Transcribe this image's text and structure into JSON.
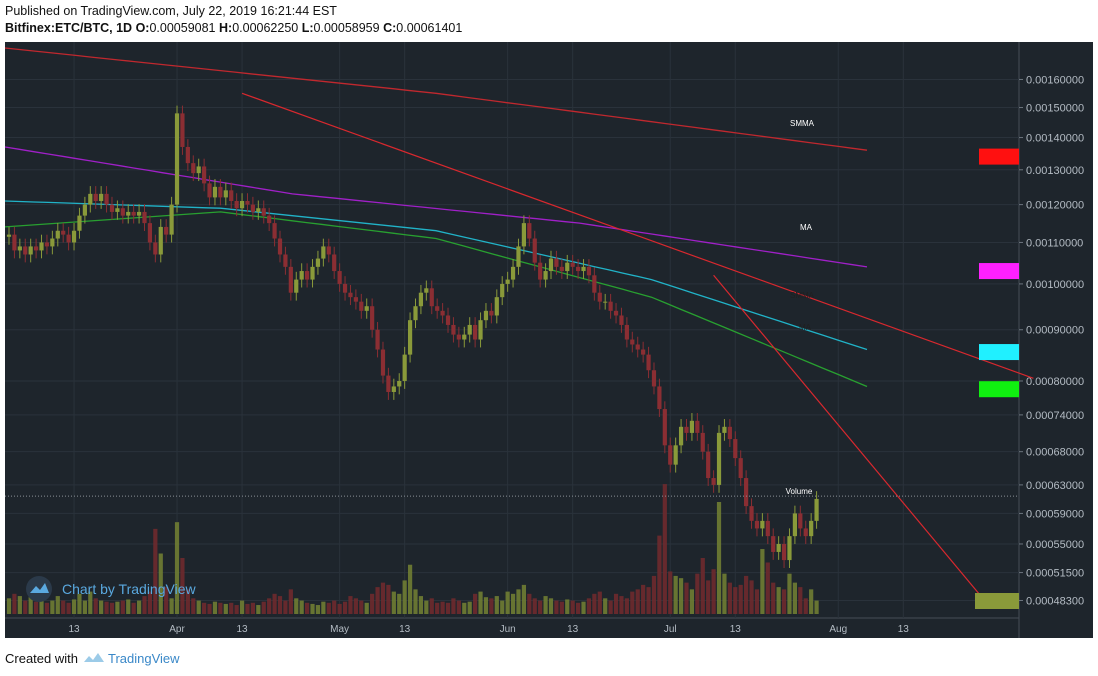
{
  "header": {
    "published": "Published on TradingView.com, July 22, 2019 16:21:44 EST",
    "symbol": "Bitfinex:ETC/BTC, 1D",
    "o_label": "O:",
    "o_value": "0.00059081",
    "h_label": "H:",
    "h_value": "0.00062250",
    "l_label": "L:",
    "l_value": "0.00058959",
    "c_label": "C:",
    "c_value": "0.00061401"
  },
  "footer": {
    "created_with": "Created with",
    "brand": "TradingView"
  },
  "watermark": "Chart by TradingView",
  "colors": {
    "background": "#1e252c",
    "grid": "#2a323b",
    "up": "#8a9a3a",
    "down": "#8b2e33",
    "up_volume": "#6f7d33",
    "down_volume": "#6e2a2e",
    "smma_red": "#c0282e",
    "ma_magenta": "#a020c8",
    "ema_cyan": "#21b3c8",
    "ma_green": "#28a030",
    "trendline": "#d8282e",
    "axis_text": "#b4bcc4"
  },
  "chart_data": {
    "type": "candlestick",
    "symbol": "Bitfinex:ETC/BTC",
    "interval": "1D",
    "y_axis": {
      "scale": "log",
      "ticks": [
        "0.00160000",
        "0.00150000",
        "0.00140000",
        "0.00130000",
        "0.00120000",
        "0.00110000",
        "0.00100000",
        "0.00090000",
        "0.00080000",
        "0.00074000",
        "0.00068000",
        "0.00063000",
        "0.00059000",
        "0.00055000",
        "0.00051500",
        "0.00048300"
      ]
    },
    "x_axis": {
      "ticks": [
        {
          "label": "13",
          "date": "2019-03-13"
        },
        {
          "label": "Apr",
          "date": "2019-04-01"
        },
        {
          "label": "13",
          "date": "2019-04-13"
        },
        {
          "label": "May",
          "date": "2019-05-01"
        },
        {
          "label": "13",
          "date": "2019-05-13"
        },
        {
          "label": "Jun",
          "date": "2019-06-01"
        },
        {
          "label": "13",
          "date": "2019-06-13"
        },
        {
          "label": "Jul",
          "date": "2019-07-01"
        },
        {
          "label": "13",
          "date": "2019-07-13"
        },
        {
          "label": "Aug",
          "date": "2019-08-01"
        },
        {
          "label": "13",
          "date": "2019-08-13"
        }
      ]
    },
    "start_date": "2019-03-01",
    "close": [
      0.00112,
      0.00108,
      0.00109,
      0.00107,
      0.00109,
      0.00108,
      0.0011,
      0.00109,
      0.00111,
      0.00113,
      0.00112,
      0.0011,
      0.00113,
      0.00117,
      0.0012,
      0.00123,
      0.00121,
      0.00123,
      0.0012,
      0.00118,
      0.00119,
      0.00117,
      0.00118,
      0.00117,
      0.00118,
      0.00115,
      0.0011,
      0.00107,
      0.00114,
      0.00112,
      0.0012,
      0.00148,
      0.00137,
      0.00132,
      0.00129,
      0.00131,
      0.00126,
      0.00122,
      0.00125,
      0.00122,
      0.00124,
      0.00121,
      0.00119,
      0.00121,
      0.0012,
      0.00118,
      0.00119,
      0.00117,
      0.00115,
      0.00111,
      0.00107,
      0.00104,
      0.00098,
      0.00101,
      0.00103,
      0.00101,
      0.00104,
      0.00106,
      0.00109,
      0.00107,
      0.00103,
      0.001,
      0.00098,
      0.00097,
      0.00096,
      0.00094,
      0.00095,
      0.0009,
      0.00086,
      0.00081,
      0.00078,
      0.00079,
      0.0008,
      0.00085,
      0.00092,
      0.00095,
      0.00098,
      0.00099,
      0.00095,
      0.00094,
      0.00093,
      0.00091,
      0.00089,
      0.00088,
      0.00089,
      0.00091,
      0.00088,
      0.00092,
      0.00094,
      0.00093,
      0.00097,
      0.001,
      0.00101,
      0.00104,
      0.00109,
      0.00115,
      0.00111,
      0.00105,
      0.00101,
      0.00103,
      0.00106,
      0.00104,
      0.00103,
      0.00105,
      0.00104,
      0.00103,
      0.00104,
      0.00102,
      0.00098,
      0.00096,
      0.00096,
      0.00094,
      0.00093,
      0.00091,
      0.00088,
      0.00087,
      0.00086,
      0.00085,
      0.00082,
      0.00079,
      0.00075,
      0.00069,
      0.00066,
      0.00069,
      0.00072,
      0.00071,
      0.00073,
      0.00071,
      0.00068,
      0.00064,
      0.00063,
      0.00071,
      0.00072,
      0.0007,
      0.00067,
      0.00064,
      0.0006,
      0.00058,
      0.00057,
      0.00058,
      0.00056,
      0.00054,
      0.00055,
      0.00053,
      0.00056,
      0.00059,
      0.00057,
      0.00056,
      0.00058,
      0.00061
    ],
    "volume": [
      14,
      18,
      16,
      12,
      15,
      11,
      14,
      10,
      12,
      16,
      12,
      10,
      13,
      18,
      12,
      20,
      14,
      12,
      11,
      10,
      11,
      12,
      13,
      10,
      12,
      16,
      20,
      76,
      54,
      24,
      14,
      82,
      50,
      22,
      14,
      12,
      10,
      9,
      11,
      10,
      9,
      10,
      8,
      12,
      9,
      10,
      8,
      11,
      14,
      18,
      16,
      12,
      22,
      14,
      12,
      10,
      9,
      8,
      11,
      10,
      12,
      9,
      11,
      16,
      14,
      12,
      10,
      18,
      24,
      28,
      26,
      20,
      18,
      30,
      44,
      22,
      16,
      12,
      14,
      10,
      11,
      10,
      14,
      12,
      10,
      11,
      18,
      20,
      15,
      14,
      16,
      12,
      20,
      18,
      22,
      26,
      18,
      14,
      12,
      16,
      14,
      12,
      11,
      13,
      12,
      10,
      11,
      14,
      18,
      20,
      14,
      12,
      18,
      16,
      14,
      20,
      22,
      26,
      24,
      34,
      70,
      116,
      38,
      34,
      32,
      28,
      22,
      36,
      50,
      30,
      40,
      100,
      36,
      28,
      24,
      26,
      34,
      30,
      22,
      58,
      46,
      28,
      24,
      22,
      36,
      28,
      24,
      14,
      22,
      12
    ],
    "indicator_labels": [
      {
        "text": "SMMA",
        "color": "#ffffff"
      },
      {
        "text": "MA",
        "color": "#ffffff"
      },
      {
        "text": "SMMA",
        "color": "#202020"
      },
      {
        "text": "MA",
        "color": "#202020"
      },
      {
        "text": "Volume",
        "color": "#ffffff"
      }
    ],
    "series_lines": [
      {
        "color": "#c0282e",
        "values": [
          0.00172,
          0.00155,
          0.00136
        ]
      },
      {
        "color": "#a020c8",
        "values": [
          0.00137,
          0.00123,
          0.00115,
          0.00104
        ]
      },
      {
        "color": "#21b3c8",
        "values": [
          0.00121,
          0.00119,
          0.00113,
          0.00101,
          0.00086
        ]
      },
      {
        "color": "#28a030",
        "values": [
          0.00114,
          0.00118,
          0.00111,
          0.00097,
          0.00079
        ]
      }
    ],
    "trendlines": [
      {
        "color": "#d8282e",
        "from": {
          "date": "2019-04-13",
          "price": 0.00155
        },
        "to": {
          "date": "2019-09-06",
          "price": 0.000805
        }
      },
      {
        "color": "#d8282e",
        "from": {
          "date": "2019-07-09",
          "price": 0.00102
        },
        "to": {
          "date": "2019-08-28",
          "price": 0.000483
        }
      }
    ],
    "last_price_line": 0.000614,
    "right_markers": [
      {
        "color": "#ff1010",
        "price": 0.00134
      },
      {
        "color": "#ff20ff",
        "price": 0.00103
      },
      {
        "color": "#20f0ff",
        "price": 0.000855
      },
      {
        "color": "#10f010",
        "price": 0.000785
      }
    ],
    "volume_marker_color": "#8a9a3a"
  }
}
